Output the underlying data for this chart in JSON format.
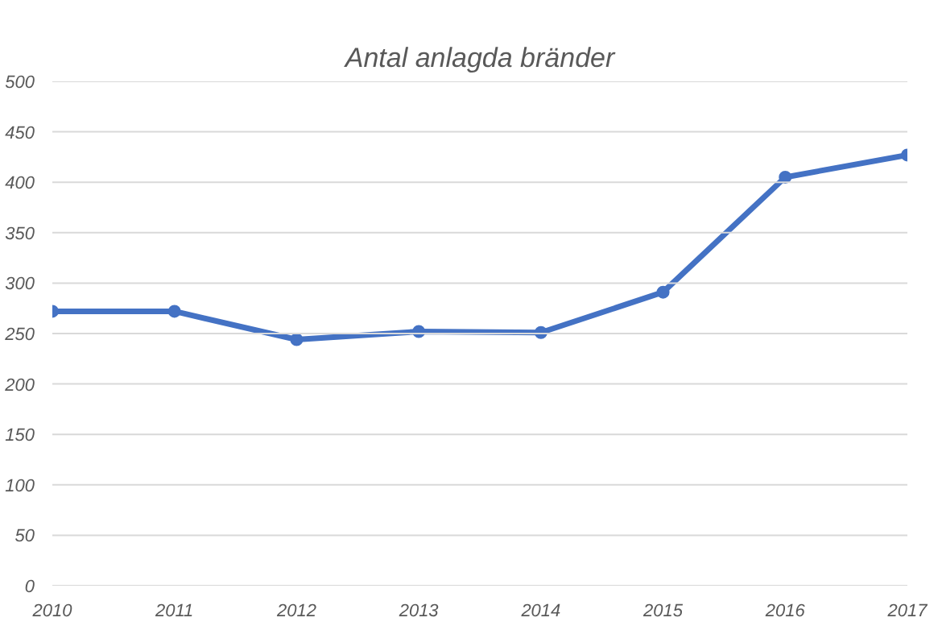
{
  "chart_data": {
    "type": "line",
    "title": "Antal anlagda bränder",
    "x": [
      2010,
      2011,
      2012,
      2013,
      2014,
      2015,
      2016,
      2017
    ],
    "series": [
      {
        "color": "#4472c4",
        "values": [
          272,
          272,
          244,
          252,
          251,
          291,
          405,
          427
        ]
      }
    ],
    "xlim": [
      2010,
      2017
    ],
    "xticks": [
      2010,
      2011,
      2012,
      2013,
      2014,
      2015,
      2016,
      2017
    ],
    "ylim": [
      0,
      500
    ],
    "yticks": [
      0,
      50,
      100,
      150,
      200,
      250,
      300,
      350,
      400,
      450,
      500
    ],
    "grid": "y",
    "marker": "circle",
    "line_style": "solid"
  }
}
